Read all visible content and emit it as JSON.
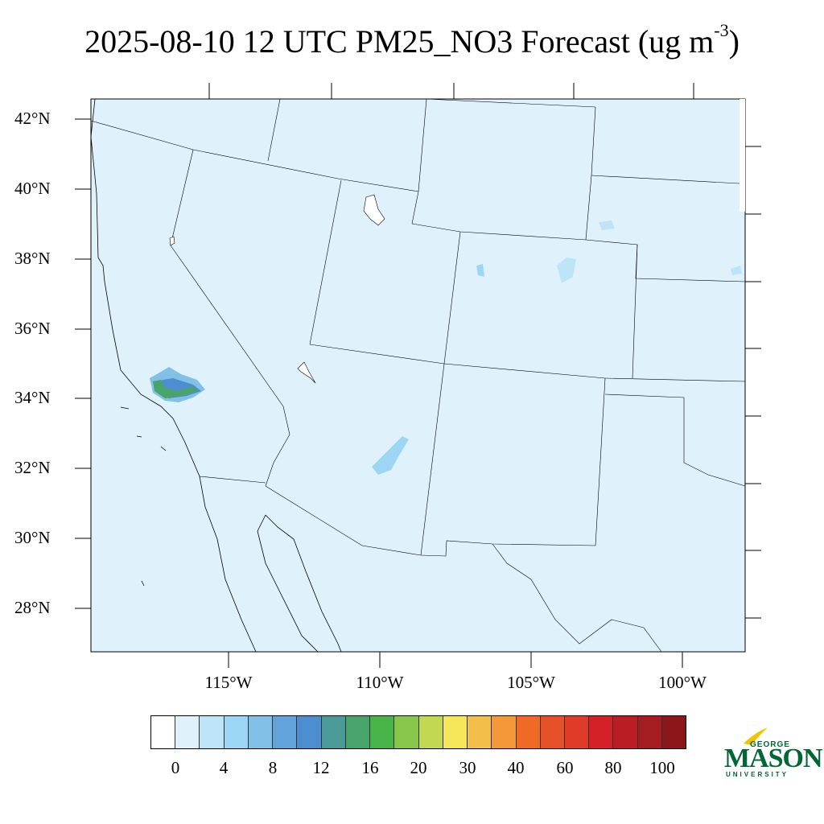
{
  "title": {
    "main": "2025-08-10 12 UTC PM25_NO3 Forecast (ug m",
    "superscript": "-3",
    "close": ")"
  },
  "map": {
    "background_color": "#dff2fc",
    "lat_labels": [
      "42°N",
      "40°N",
      "38°N",
      "36°N",
      "34°N",
      "32°N",
      "30°N",
      "28°N"
    ],
    "lon_labels": [
      "115°W",
      "110°W",
      "105°W",
      "100°W"
    ]
  },
  "colorbar": {
    "colors": [
      "#ffffff",
      "#dff2fc",
      "#bde5f7",
      "#9dd6f4",
      "#82c0e8",
      "#63a3dc",
      "#4c8ecf",
      "#4a9a98",
      "#49a46c",
      "#46b448",
      "#88c64b",
      "#c2d853",
      "#f5e65a",
      "#f4be4a",
      "#f39939",
      "#f06a26",
      "#e65029",
      "#e03a28",
      "#d42026",
      "#bb1d24",
      "#a51d22",
      "#8b171a"
    ],
    "labels": [
      "0",
      "4",
      "8",
      "12",
      "16",
      "20",
      "30",
      "40",
      "60",
      "80",
      "100"
    ]
  },
  "logo": {
    "line1": "GEORGE",
    "line2": "MASON",
    "line3": "UNIVERSITY",
    "color": "#006633",
    "accent": "#f2c400"
  }
}
